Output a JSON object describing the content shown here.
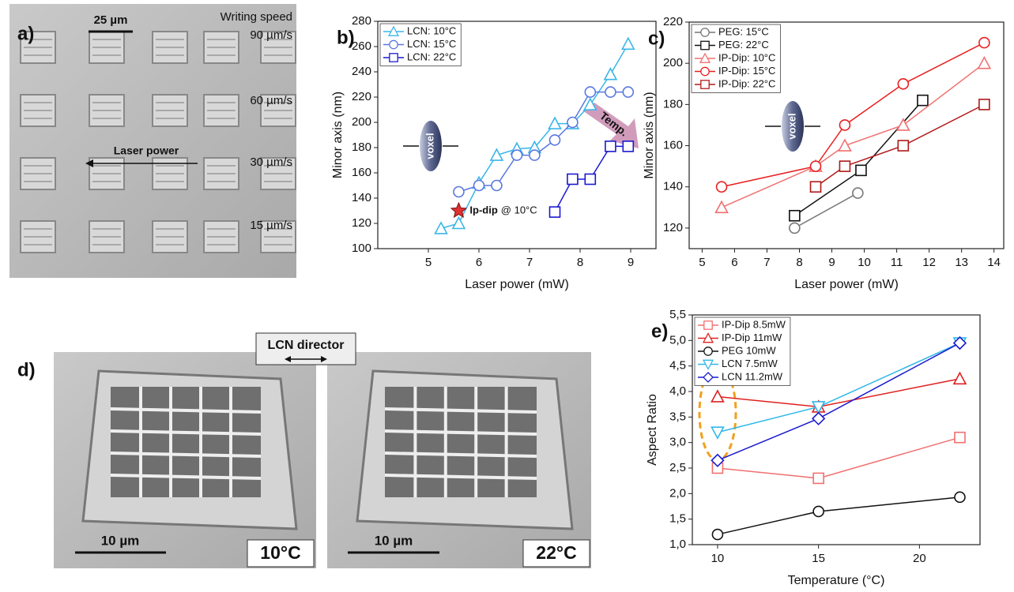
{
  "panel_a": {
    "label": "a)",
    "scale_bar": "25 µm",
    "heading": "Writing speed",
    "speeds": [
      "90 µm/s",
      "60 µm/s",
      "30 µm/s",
      "15 µm/s"
    ],
    "arrow_label": "Laser power"
  },
  "panel_d": {
    "label": "d)",
    "director": "LCN director",
    "scale_bars": [
      "10 µm",
      "10 µm"
    ],
    "temperatures": [
      "10°C",
      "22°C"
    ]
  },
  "chart_data": [
    {
      "type": "line",
      "panel_label": "b)",
      "x_label": "Laser power (mW)",
      "y_label": "Minor axis (nm)",
      "xlim": [
        4,
        9.5
      ],
      "xticks": [
        5,
        6,
        7,
        8,
        9
      ],
      "ylim": [
        100,
        280
      ],
      "yticks": [
        100,
        120,
        140,
        160,
        180,
        200,
        220,
        240,
        260,
        280
      ],
      "legend": "upper left",
      "annotations": [
        "voxel",
        "Temp."
      ],
      "highlight": {
        "x": 5.6,
        "y": 130,
        "label": "Ip-dip",
        "note": "@ 10°C",
        "color": "#e03030"
      },
      "series": [
        {
          "name": "LCN: 10°C",
          "color": "#3bb6e8",
          "marker": "triangle",
          "x": [
            5.25,
            5.6,
            6.0,
            6.35,
            6.75,
            7.1,
            7.5,
            7.85,
            8.2,
            8.6,
            8.95
          ],
          "values": [
            116,
            120,
            152,
            174,
            179,
            180,
            199,
            199,
            214,
            238,
            262
          ]
        },
        {
          "name": "LCN: 15°C",
          "color": "#5a78e0",
          "marker": "circle",
          "x": [
            5.6,
            6.0,
            6.35,
            6.75,
            7.1,
            7.5,
            7.85,
            8.2,
            8.6,
            8.95
          ],
          "values": [
            145,
            150,
            150,
            174,
            174,
            186,
            200,
            224,
            224,
            224
          ]
        },
        {
          "name": "LCN: 22°C",
          "color": "#1a1ad0",
          "marker": "square",
          "x": [
            7.5,
            7.85,
            8.2,
            8.6,
            8.95
          ],
          "values": [
            129,
            155,
            155,
            181,
            181
          ]
        }
      ]
    },
    {
      "type": "line",
      "panel_label": "c)",
      "x_label": "Laser power (mW)",
      "y_label": "Minor axis (nm)",
      "xlim": [
        4.6,
        14.3
      ],
      "xticks": [
        5,
        6,
        7,
        8,
        9,
        10,
        11,
        12,
        13,
        14
      ],
      "ylim": [
        110,
        220
      ],
      "yticks": [
        120,
        140,
        160,
        180,
        200,
        220
      ],
      "legend": "upper left",
      "annotations": [
        "voxel"
      ],
      "series": [
        {
          "name": "PEG: 15°C",
          "color": "#777777",
          "marker": "circle",
          "x": [
            7.85,
            9.8
          ],
          "values": [
            120,
            137
          ]
        },
        {
          "name": "PEG: 22°C",
          "color": "#111111",
          "marker": "square",
          "x": [
            7.85,
            9.9,
            11.8
          ],
          "values": [
            126,
            148,
            182
          ]
        },
        {
          "name": "IP-Dip: 10°C",
          "color": "#f07070",
          "marker": "triangle",
          "x": [
            5.6,
            8.5,
            9.4,
            11.2,
            13.7
          ],
          "values": [
            130,
            150,
            160,
            170,
            200
          ]
        },
        {
          "name": "IP-Dip: 15°C",
          "color": "#e82020",
          "marker": "circle",
          "x": [
            5.6,
            8.5,
            9.4,
            11.2,
            13.7
          ],
          "values": [
            140,
            150,
            170,
            190,
            210
          ]
        },
        {
          "name": "IP-Dip: 22°C",
          "color": "#b01818",
          "marker": "square",
          "x": [
            8.5,
            9.4,
            11.2,
            13.7
          ],
          "values": [
            140,
            150,
            160,
            180
          ]
        }
      ]
    },
    {
      "type": "line",
      "panel_label": "e)",
      "x_label": "Temperature (°C)",
      "y_label": "Aspect Ratio",
      "xlim": [
        8.75,
        23
      ],
      "xticks": [
        10,
        15,
        20
      ],
      "ylim": [
        1,
        5.5
      ],
      "yticks": [
        {
          "value": 1,
          "label": "1,0"
        },
        {
          "value": 1.5,
          "label": "1,5"
        },
        {
          "value": 2,
          "label": "2,0"
        },
        {
          "value": 2.5,
          "label": "2,5"
        },
        {
          "value": 3,
          "label": "3,0"
        },
        {
          "value": 3.5,
          "label": "3,5"
        },
        {
          "value": 4,
          "label": "4,0"
        },
        {
          "value": 4.5,
          "label": "4,5"
        },
        {
          "value": 5,
          "label": "5,0"
        },
        {
          "value": 5.5,
          "label": "5,5"
        }
      ],
      "legend": "upper left",
      "x": [
        10,
        15,
        22
      ],
      "series": [
        {
          "name": "IP-Dip 8.5mW",
          "color": "#f07070",
          "marker": "square",
          "values": [
            2.5,
            2.3,
            3.1
          ]
        },
        {
          "name": "IP-Dip 11mW",
          "color": "#e02020",
          "marker": "triangle",
          "values": [
            3.9,
            3.7,
            4.25
          ]
        },
        {
          "name": "PEG 10mW",
          "color": "#111111",
          "marker": "circle",
          "values": [
            1.2,
            1.65,
            1.93
          ]
        },
        {
          "name": "LCN 7.5mW",
          "color": "#30b8e8",
          "marker": "triangle-down",
          "values": [
            3.2,
            3.7,
            4.95
          ]
        },
        {
          "name": "LCN 11.2mW",
          "color": "#1a1ad0",
          "marker": "diamond",
          "values": [
            2.65,
            3.47,
            4.95
          ]
        }
      ]
    }
  ]
}
